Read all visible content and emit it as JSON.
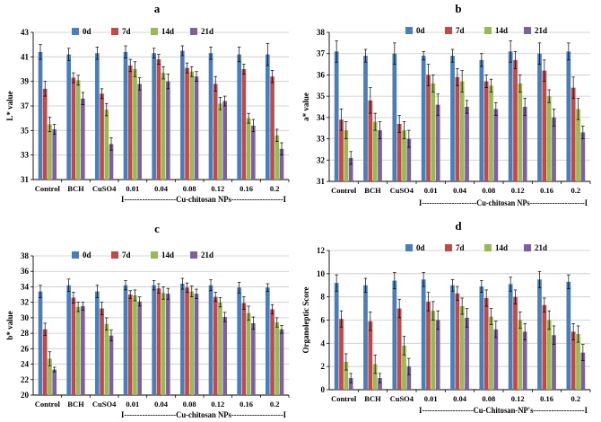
{
  "chart_data": [
    {
      "panel": "a",
      "type": "bar",
      "ylabel": "L* value",
      "ylim": [
        31,
        43
      ],
      "yticks": [
        31,
        33,
        35,
        37,
        39,
        41,
        43
      ],
      "categories": [
        "Control",
        "BCH",
        "CuSO4",
        "0.01",
        "0.04",
        "0.08",
        "0.12",
        "0.16",
        "0.2"
      ],
      "group_label": "I--------------------Cu-chitosan NPs--------------------I",
      "legend": [
        "0d",
        "7d",
        "14d",
        "21d"
      ],
      "series": [
        {
          "name": "0d",
          "color": "#4a7ebb",
          "values": [
            41.4,
            41.2,
            41.3,
            41.4,
            41.3,
            41.5,
            41.3,
            41.2,
            41.2
          ],
          "errors": [
            0.6,
            0.5,
            0.5,
            0.5,
            0.4,
            0.4,
            0.5,
            0.6,
            0.9
          ]
        },
        {
          "name": "7d",
          "color": "#be4b48",
          "values": [
            38.4,
            39.3,
            38.0,
            40.3,
            40.8,
            40.1,
            38.8,
            40.0,
            39.4
          ],
          "errors": [
            0.6,
            0.4,
            0.4,
            0.5,
            0.4,
            0.4,
            0.6,
            0.4,
            0.5
          ]
        },
        {
          "name": "14d",
          "color": "#98b954",
          "values": [
            35.5,
            39.1,
            36.7,
            40.0,
            39.7,
            39.8,
            37.2,
            36.0,
            34.6
          ],
          "errors": [
            0.6,
            0.4,
            0.5,
            0.6,
            0.5,
            0.4,
            0.5,
            0.4,
            0.5
          ]
        },
        {
          "name": "21d",
          "color": "#7d60a0",
          "values": [
            35.1,
            37.6,
            33.9,
            38.8,
            39.0,
            39.4,
            37.4,
            35.4,
            33.5
          ],
          "errors": [
            0.4,
            0.5,
            0.5,
            0.5,
            0.6,
            0.4,
            0.4,
            0.5,
            0.5
          ]
        }
      ]
    },
    {
      "panel": "b",
      "type": "bar",
      "ylabel": "a* value",
      "ylim": [
        31,
        38
      ],
      "yticks": [
        31,
        32,
        33,
        34,
        35,
        36,
        37,
        38
      ],
      "categories": [
        "Control",
        "BCH",
        "CuSO4",
        "0.01",
        "0.04",
        "0.08",
        "0.12",
        "0.16",
        "0.2"
      ],
      "group_label": "I----------------------Cu-chitosan NPs----------------------I",
      "legend": [
        "0d",
        "7d",
        "14d",
        "21d"
      ],
      "series": [
        {
          "name": "0d",
          "color": "#4a7ebb",
          "values": [
            37.1,
            36.9,
            37.0,
            36.9,
            36.9,
            36.7,
            37.1,
            37.0,
            37.1
          ],
          "errors": [
            0.5,
            0.3,
            0.5,
            0.2,
            0.3,
            0.3,
            0.5,
            0.5,
            0.4
          ]
        },
        {
          "name": "7d",
          "color": "#be4b48",
          "values": [
            33.9,
            34.8,
            33.7,
            36.0,
            35.9,
            35.7,
            36.7,
            36.2,
            35.4
          ],
          "errors": [
            0.5,
            0.6,
            0.4,
            0.5,
            0.4,
            0.3,
            0.4,
            0.5,
            0.5
          ]
        },
        {
          "name": "14d",
          "color": "#98b954",
          "values": [
            33.4,
            33.8,
            33.4,
            35.6,
            35.7,
            35.5,
            35.6,
            35.0,
            34.4
          ],
          "errors": [
            0.4,
            0.4,
            0.4,
            0.4,
            0.5,
            0.3,
            0.4,
            0.3,
            0.5
          ]
        },
        {
          "name": "21d",
          "color": "#7d60a0",
          "values": [
            32.1,
            33.4,
            33.0,
            34.6,
            34.5,
            34.4,
            34.5,
            34.0,
            33.3
          ],
          "errors": [
            0.3,
            0.4,
            0.4,
            0.5,
            0.3,
            0.3,
            0.4,
            0.4,
            0.3
          ]
        }
      ]
    },
    {
      "panel": "c",
      "type": "bar",
      "ylabel": "b* value",
      "ylim": [
        20,
        38
      ],
      "yticks": [
        20,
        22,
        24,
        26,
        28,
        30,
        32,
        34,
        36,
        38
      ],
      "categories": [
        "Control",
        "BCH",
        "CuSO4",
        "0.01",
        "0.04",
        "0.08",
        "0.12",
        "0.16",
        "0.2"
      ],
      "group_label": "I--------------------Cu-chitosan NPs--------------------I",
      "legend": [
        "0d",
        "7d",
        "14d",
        "21d"
      ],
      "series": [
        {
          "name": "0d",
          "color": "#4a7ebb",
          "values": [
            33.4,
            34.2,
            33.4,
            34.2,
            34.2,
            34.4,
            34.2,
            33.9,
            33.9
          ],
          "errors": [
            0.8,
            0.8,
            0.8,
            0.6,
            0.6,
            0.7,
            0.7,
            0.7,
            0.5
          ]
        },
        {
          "name": "7d",
          "color": "#be4b48",
          "values": [
            28.5,
            32.6,
            31.2,
            33.0,
            33.8,
            33.9,
            32.7,
            31.9,
            31.1
          ],
          "errors": [
            0.8,
            0.7,
            0.8,
            0.5,
            0.6,
            0.6,
            0.6,
            0.8,
            0.6
          ]
        },
        {
          "name": "14d",
          "color": "#98b954",
          "values": [
            24.7,
            31.4,
            29.2,
            32.9,
            33.2,
            33.4,
            32.0,
            30.6,
            29.4
          ],
          "errors": [
            0.9,
            0.6,
            0.8,
            0.7,
            0.8,
            0.7,
            0.6,
            0.9,
            0.6
          ]
        },
        {
          "name": "21d",
          "color": "#7d60a0",
          "values": [
            23.3,
            31.5,
            27.7,
            32.1,
            33.1,
            33.1,
            30.1,
            29.3,
            28.5
          ],
          "errors": [
            0.3,
            0.5,
            0.7,
            0.6,
            0.7,
            0.6,
            0.6,
            0.8,
            0.5
          ]
        }
      ]
    },
    {
      "panel": "d",
      "type": "bar",
      "ylabel": "Organoleptic Score",
      "ylim": [
        0,
        12
      ],
      "yticks": [
        0,
        2,
        4,
        6,
        8,
        10,
        12
      ],
      "categories": [
        "Control",
        "BCH",
        "CuSO4",
        "0.01",
        "0.04",
        "0.08",
        "0.12",
        "0.16",
        "0.2"
      ],
      "group_label": "I--------------------Cu-Chitosan-NP's--------------------I",
      "legend": [
        "0d",
        "7d",
        "14d",
        "21d"
      ],
      "series": [
        {
          "name": "0d",
          "color": "#4a7ebb",
          "values": [
            9.2,
            9.0,
            9.4,
            9.5,
            9.0,
            8.9,
            9.1,
            9.5,
            9.3
          ],
          "errors": [
            0.7,
            0.6,
            0.7,
            0.6,
            0.5,
            0.5,
            0.6,
            0.7,
            0.6
          ]
        },
        {
          "name": "7d",
          "color": "#be4b48",
          "values": [
            6.1,
            5.9,
            7.0,
            7.6,
            8.3,
            7.9,
            8.0,
            7.3,
            5.0
          ],
          "errors": [
            0.7,
            0.8,
            0.8,
            0.8,
            0.6,
            0.7,
            0.6,
            0.6,
            0.7
          ]
        },
        {
          "name": "14d",
          "color": "#98b954",
          "values": [
            2.4,
            2.2,
            3.8,
            6.8,
            7.2,
            6.3,
            6.0,
            6.0,
            4.8
          ],
          "errors": [
            0.7,
            0.8,
            0.8,
            0.8,
            0.7,
            0.7,
            0.7,
            0.8,
            0.7
          ]
        },
        {
          "name": "21d",
          "color": "#7d60a0",
          "values": [
            1.0,
            1.0,
            2.0,
            6.0,
            6.2,
            5.2,
            5.0,
            4.7,
            3.2
          ],
          "errors": [
            0.4,
            0.4,
            0.7,
            0.8,
            0.8,
            0.7,
            0.7,
            0.8,
            0.7
          ]
        }
      ]
    }
  ]
}
